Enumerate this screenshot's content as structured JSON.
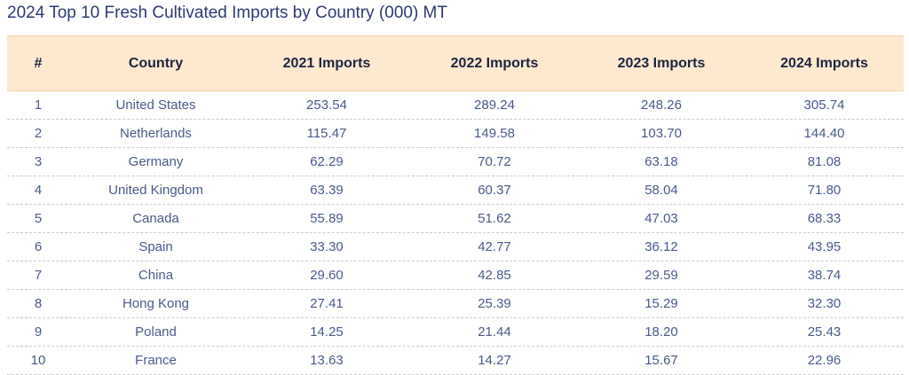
{
  "title": "2024 Top 10 Fresh Cultivated Imports by Country (000) MT",
  "colors": {
    "title": "#2e3a74",
    "header_bg": "#fde9d0",
    "header_text": "#1f2440",
    "row_text": "#4a5a8c",
    "row_divider": "#cccccc"
  },
  "chart_data": {
    "type": "table",
    "title": "2024 Top 10 Fresh Cultivated Imports by Country (000) MT",
    "columns": [
      "#",
      "Country",
      "2021 Imports",
      "2022 Imports",
      "2023 Imports",
      "2024 Imports"
    ],
    "rows": [
      [
        "1",
        "United States",
        "253.54",
        "289.24",
        "248.26",
        "305.74"
      ],
      [
        "2",
        "Netherlands",
        "115.47",
        "149.58",
        "103.70",
        "144.40"
      ],
      [
        "3",
        "Germany",
        "62.29",
        "70.72",
        "63.18",
        "81.08"
      ],
      [
        "4",
        "United Kingdom",
        "63.39",
        "60.37",
        "58.04",
        "71.80"
      ],
      [
        "5",
        "Canada",
        "55.89",
        "51.62",
        "47.03",
        "68.33"
      ],
      [
        "6",
        "Spain",
        "33.30",
        "42.77",
        "36.12",
        "43.95"
      ],
      [
        "7",
        "China",
        "29.60",
        "42.85",
        "29.59",
        "38.74"
      ],
      [
        "8",
        "Hong Kong",
        "27.41",
        "25.39",
        "15.29",
        "32.30"
      ],
      [
        "9",
        "Poland",
        "14.25",
        "21.44",
        "18.20",
        "25.43"
      ],
      [
        "10",
        "France",
        "13.63",
        "14.27",
        "15.67",
        "22.96"
      ]
    ]
  }
}
